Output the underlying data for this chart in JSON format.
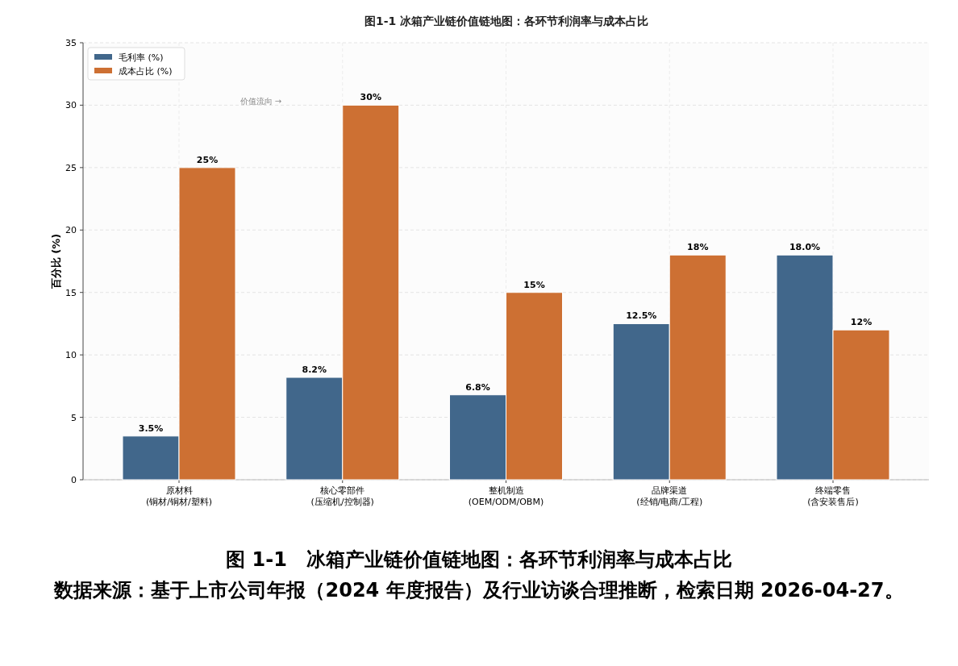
{
  "chart_data": {
    "type": "bar",
    "title": "图1-1  冰箱产业链价值链地图：各环节利润率与成本占比",
    "categories": [
      "原材料\n(铜材/铜材/塑料)",
      "核心零部件\n(压缩机/控制器)",
      "整机制造\n(OEM/ODM/OBM)",
      "品牌渠道\n(经销/电商/工程)",
      "终端零售\n(含安装售后)"
    ],
    "ylabel": "百分比 (%)",
    "ylim": [
      0,
      35
    ],
    "yticks": [
      0,
      5,
      10,
      15,
      20,
      25,
      30,
      35
    ],
    "series": [
      {
        "name": "毛利率 (%)",
        "color": "#41678b",
        "values": [
          3.5,
          8.2,
          6.8,
          12.5,
          18.0
        ],
        "value_labels": [
          "3.5%",
          "8.2%",
          "6.8%",
          "12.5%",
          "18.0%"
        ]
      },
      {
        "name": "成本占比 (%)",
        "color": "#cd7033",
        "values": [
          25,
          30,
          15,
          18,
          12
        ],
        "value_labels": [
          "25%",
          "30%",
          "15%",
          "18%",
          "12%"
        ]
      }
    ],
    "grid": true,
    "legend": "top left",
    "annotations": [
      "价值流向 →",
      "图 1-1　冰箱产业链价值链地图：各环节利润率与成本占比",
      "数据来源：基于上市公司年报（2024 年度报告）及行业访谈合理推断，检索日期 2026-04-27。"
    ]
  }
}
